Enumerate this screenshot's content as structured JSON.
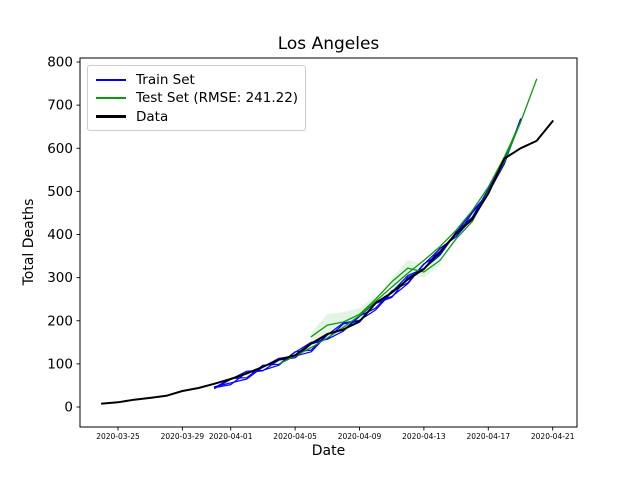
{
  "window": {
    "title": "Los Angeles"
  },
  "legend": {
    "items": [
      {
        "label": "Train Set",
        "color": "#0000ff",
        "lw": 2
      },
      {
        "label": "Test Set (RMSE: 241.22)",
        "color": "#0a9b0a",
        "lw": 2
      },
      {
        "label": "Data",
        "color": "#000000",
        "lw": 3
      }
    ]
  },
  "chart_data": {
    "type": "line",
    "title": "Los Angeles",
    "xlabel": "Date",
    "ylabel": "Total Deaths",
    "x_ticks": [
      "2020-03-25",
      "2020-03-29",
      "2020-04-01",
      "2020-04-05",
      "2020-04-09",
      "2020-04-13",
      "2020-04-17",
      "2020-04-21"
    ],
    "y_ticks": [
      0,
      100,
      200,
      300,
      400,
      500,
      600,
      700,
      800
    ],
    "xlim": [
      "2020-03-22",
      "2020-04-22"
    ],
    "ylim": [
      -46,
      810
    ],
    "grid": false,
    "legend_position": "upper left",
    "band_color": "rgba(10,155,10,0.11)",
    "bands": [
      {
        "name": "test-confidence-band-1",
        "points": [
          [
            "2020-04-06",
            148
          ],
          [
            "2020-04-07",
            158
          ],
          [
            "2020-04-08",
            176
          ],
          [
            "2020-04-09",
            198
          ],
          [
            "2020-04-10",
            230
          ],
          [
            "2020-04-10",
            258
          ],
          [
            "2020-04-09",
            230
          ],
          [
            "2020-04-08",
            220
          ],
          [
            "2020-04-07",
            215
          ],
          [
            "2020-04-06",
            172
          ]
        ]
      },
      {
        "name": "test-confidence-band-2",
        "points": [
          [
            "2020-04-11",
            268
          ],
          [
            "2020-04-12",
            306
          ],
          [
            "2020-04-13",
            300
          ],
          [
            "2020-04-14",
            330
          ],
          [
            "2020-04-14",
            352
          ],
          [
            "2020-04-13",
            330
          ],
          [
            "2020-04-12",
            342
          ],
          [
            "2020-04-11",
            298
          ]
        ]
      }
    ],
    "series": [
      {
        "id": "train-set-1",
        "name": "Train Set",
        "color": "#0000ff",
        "lw": 1.2,
        "start_date": "2020-03-31",
        "values": [
          45,
          52,
          80,
          84,
          109,
          114,
          146,
          158,
          193,
          199,
          240,
          254,
          301,
          319,
          368,
          395,
          450,
          494,
          574,
          665
        ]
      },
      {
        "id": "train-set-2",
        "name": "Train Set",
        "color": "#0000ff",
        "lw": 1.2,
        "start_date": "2020-03-31",
        "values": [
          45,
          66,
          68,
          97,
          99,
          128,
          132,
          170,
          178,
          211,
          229,
          269,
          288,
          332,
          354,
          406,
          440,
          505,
          566,
          663
        ]
      },
      {
        "id": "train-set-3",
        "name": "Train Set",
        "color": "#0000ff",
        "lw": 1.2,
        "start_date": "2020-03-31",
        "values": [
          47,
          56,
          65,
          93,
          113,
          118,
          128,
          167,
          195,
          201,
          225,
          266,
          305,
          321,
          352,
          404,
          453,
          496,
          564,
          668
        ]
      },
      {
        "id": "train-set-4",
        "name": "Train Set",
        "color": "#0000ff",
        "lw": 1.2,
        "start_date": "2020-03-31",
        "values": [
          43,
          64,
          83,
          85,
          97,
          127,
          150,
          157,
          176,
          210,
          244,
          256,
          286,
          331,
          367,
          395,
          438,
          505,
          575,
          662
        ]
      },
      {
        "id": "test-set-1",
        "name": "Test Set",
        "color": "#0a9b0a",
        "lw": 1.3,
        "start_date": "2020-04-06",
        "values": [
          163,
          190,
          197,
          215,
          250,
          290,
          322,
          313,
          340,
          390,
          430,
          500,
          570,
          660,
          760
        ]
      },
      {
        "id": "test-set-2",
        "name": "Test Set",
        "color": "#0a9b0a",
        "lw": 1.3,
        "start_date": "2020-04-04",
        "values": [
          100,
          118,
          138,
          160,
          185,
          212,
          245,
          278,
          310,
          340,
          372,
          410,
          455,
          510,
          580,
          660
        ]
      },
      {
        "id": "data",
        "name": "Data",
        "color": "#000000",
        "lw": 2,
        "start_date": "2020-03-24",
        "values": [
          8,
          11,
          17,
          21,
          26,
          37,
          44,
          54,
          65,
          78,
          93,
          110,
          120,
          147,
          169,
          180,
          198,
          241,
          265,
          296,
          320,
          360,
          402,
          435,
          495,
          576,
          600,
          617,
          663
        ]
      }
    ]
  }
}
